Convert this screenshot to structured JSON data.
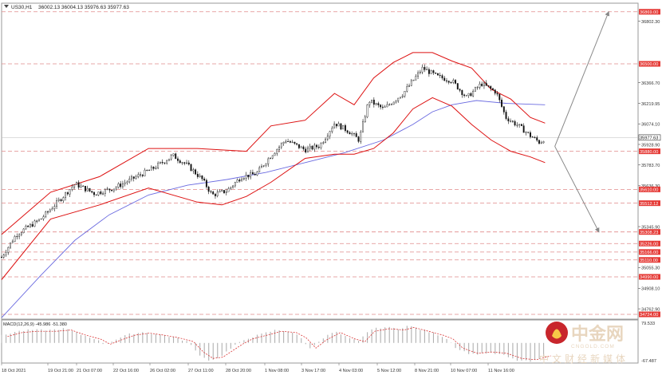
{
  "chart_data": [
    {
      "type": "candlestick",
      "title": "US30,H1",
      "ohlc_readout": "36002.13 36004.13 35976.63 35977.63",
      "ylim": [
        34690,
        36930
      ],
      "y_ticks": [
        "36802.30",
        "36366.70",
        "36219.95",
        "36074.10",
        "35928.90",
        "35783.70",
        "35636.30",
        "35345.90",
        "35055.30",
        "34908.10",
        "34762.90"
      ],
      "level_lines": [
        {
          "value": 36869.0,
          "label": "36869.00"
        },
        {
          "value": 36500.0,
          "label": "36500.00"
        },
        {
          "value": 35880.0,
          "label": "35880.00"
        },
        {
          "value": 35610.0,
          "label": "35610.00"
        },
        {
          "value": 35512.12,
          "label": "35512.12"
        },
        {
          "value": 35308.23,
          "label": "35308.23"
        },
        {
          "value": 35226.0,
          "label": "35226.00"
        },
        {
          "value": 35166.0,
          "label": "35166.00"
        },
        {
          "value": 35110.0,
          "label": "35110.00"
        },
        {
          "value": 34990.0,
          "label": "34990.00"
        },
        {
          "value": 34724.0,
          "label": "34724.00"
        }
      ],
      "current_price": {
        "value": 35977.63,
        "label": "35977.63"
      },
      "x_labels": [
        "18 Oct 2021",
        "19 Oct 21:00",
        "21 Oct 07:00",
        "22 Oct 16:00",
        "26 Oct 02:00",
        "27 Oct 11:00",
        "28 Oct 20:00",
        "1 Nov 08:00",
        "3 Nov 17:00",
        "4 Nov 03:00",
        "5 Nov 12:00",
        "8 Nov 21:00",
        "10 Nov 07:00",
        "11 Nov 16:00"
      ],
      "price_path": [
        [
          0,
          35130
        ],
        [
          3,
          35290
        ],
        [
          8,
          35400
        ],
        [
          12,
          35540
        ],
        [
          15,
          35650
        ],
        [
          19,
          35580
        ],
        [
          23,
          35620
        ],
        [
          27,
          35690
        ],
        [
          31,
          35760
        ],
        [
          35,
          35850
        ],
        [
          38,
          35780
        ],
        [
          41,
          35680
        ],
        [
          43,
          35570
        ],
        [
          46,
          35600
        ],
        [
          49,
          35700
        ],
        [
          52,
          35720
        ],
        [
          55,
          35850
        ],
        [
          58,
          35960
        ],
        [
          62,
          35890
        ],
        [
          65,
          35920
        ],
        [
          68,
          36080
        ],
        [
          71,
          36020
        ],
        [
          73,
          35960
        ],
        [
          75,
          36240
        ],
        [
          78,
          36180
        ],
        [
          82,
          36290
        ],
        [
          86,
          36470
        ],
        [
          89,
          36410
        ],
        [
          92,
          36380
        ],
        [
          95,
          36260
        ],
        [
          98,
          36360
        ],
        [
          101,
          36300
        ],
        [
          103,
          36120
        ],
        [
          106,
          36050
        ],
        [
          108,
          35990
        ],
        [
          110,
          35940
        ],
        [
          111,
          35977.63
        ]
      ],
      "indicators": {
        "bollinger_upper": [
          [
            0,
            35290
          ],
          [
            10,
            35590
          ],
          [
            20,
            35700
          ],
          [
            30,
            35900
          ],
          [
            40,
            35900
          ],
          [
            50,
            35880
          ],
          [
            55,
            36060
          ],
          [
            62,
            36100
          ],
          [
            68,
            36290
          ],
          [
            72,
            36210
          ],
          [
            76,
            36400
          ],
          [
            80,
            36510
          ],
          [
            84,
            36580
          ],
          [
            88,
            36580
          ],
          [
            92,
            36520
          ],
          [
            96,
            36470
          ],
          [
            100,
            36320
          ],
          [
            104,
            36250
          ],
          [
            108,
            36120
          ],
          [
            111,
            36080
          ]
        ],
        "bollinger_lower": [
          [
            0,
            34970
          ],
          [
            10,
            35400
          ],
          [
            20,
            35500
          ],
          [
            30,
            35620
          ],
          [
            40,
            35520
          ],
          [
            45,
            35500
          ],
          [
            50,
            35560
          ],
          [
            55,
            35660
          ],
          [
            62,
            35830
          ],
          [
            68,
            35860
          ],
          [
            72,
            35860
          ],
          [
            76,
            35900
          ],
          [
            80,
            36010
          ],
          [
            84,
            36180
          ],
          [
            88,
            36260
          ],
          [
            92,
            36200
          ],
          [
            96,
            36070
          ],
          [
            100,
            35960
          ],
          [
            104,
            35880
          ],
          [
            108,
            35840
          ],
          [
            111,
            35800
          ]
        ],
        "moving_average": [
          [
            0,
            34700
          ],
          [
            8,
            35000
          ],
          [
            15,
            35250
          ],
          [
            22,
            35430
          ],
          [
            30,
            35570
          ],
          [
            38,
            35640
          ],
          [
            46,
            35680
          ],
          [
            54,
            35730
          ],
          [
            62,
            35800
          ],
          [
            70,
            35870
          ],
          [
            78,
            35960
          ],
          [
            84,
            36070
          ],
          [
            88,
            36160
          ],
          [
            92,
            36210
          ],
          [
            97,
            36240
          ],
          [
            103,
            36220
          ],
          [
            111,
            36210
          ]
        ]
      },
      "projection": {
        "start": [
          113,
          35915
        ],
        "up_target": [
          124,
          36869
        ],
        "down_target": [
          122,
          35308.23
        ]
      },
      "macd": {
        "label": "MACD(12,26,9) -45.986 -51.380",
        "y_ticks": [
          "79.533",
          "-67.487"
        ],
        "hist": [
          [
            0,
            25
          ],
          [
            3,
            40
          ],
          [
            6,
            45
          ],
          [
            10,
            45
          ],
          [
            13,
            50
          ],
          [
            16,
            30
          ],
          [
            19,
            15
          ],
          [
            21,
            -5
          ],
          [
            23,
            10
          ],
          [
            26,
            30
          ],
          [
            29,
            38
          ],
          [
            32,
            30
          ],
          [
            35,
            20
          ],
          [
            38,
            5
          ],
          [
            40,
            -35
          ],
          [
            42,
            -60
          ],
          [
            44,
            -55
          ],
          [
            46,
            -30
          ],
          [
            48,
            -5
          ],
          [
            50,
            15
          ],
          [
            53,
            30
          ],
          [
            56,
            45
          ],
          [
            59,
            40
          ],
          [
            61,
            20
          ],
          [
            63,
            -20
          ],
          [
            65,
            10
          ],
          [
            68,
            40
          ],
          [
            71,
            15
          ],
          [
            73,
            5
          ],
          [
            75,
            45
          ],
          [
            78,
            55
          ],
          [
            81,
            50
          ],
          [
            83,
            60
          ],
          [
            86,
            45
          ],
          [
            89,
            30
          ],
          [
            91,
            15
          ],
          [
            93,
            -20
          ],
          [
            96,
            -40
          ],
          [
            99,
            -35
          ],
          [
            102,
            -40
          ],
          [
            105,
            -60
          ],
          [
            108,
            -65
          ],
          [
            111,
            -50
          ]
        ]
      }
    }
  ],
  "watermark": {
    "brand": "中金网",
    "site": "CNGOLD.COM",
    "slogan": "中文财经新媒体"
  },
  "icons": {
    "menu": "triangle-down-icon",
    "logo": "cngold-logo-icon"
  },
  "colors": {
    "level_line": "#e08a8a",
    "bollinger": "#dd1111",
    "ma": "#6a6ae0",
    "candle": "#111111",
    "projection": "#888888",
    "watermark": "#e8d6bf",
    "logo": "#c8262c"
  }
}
